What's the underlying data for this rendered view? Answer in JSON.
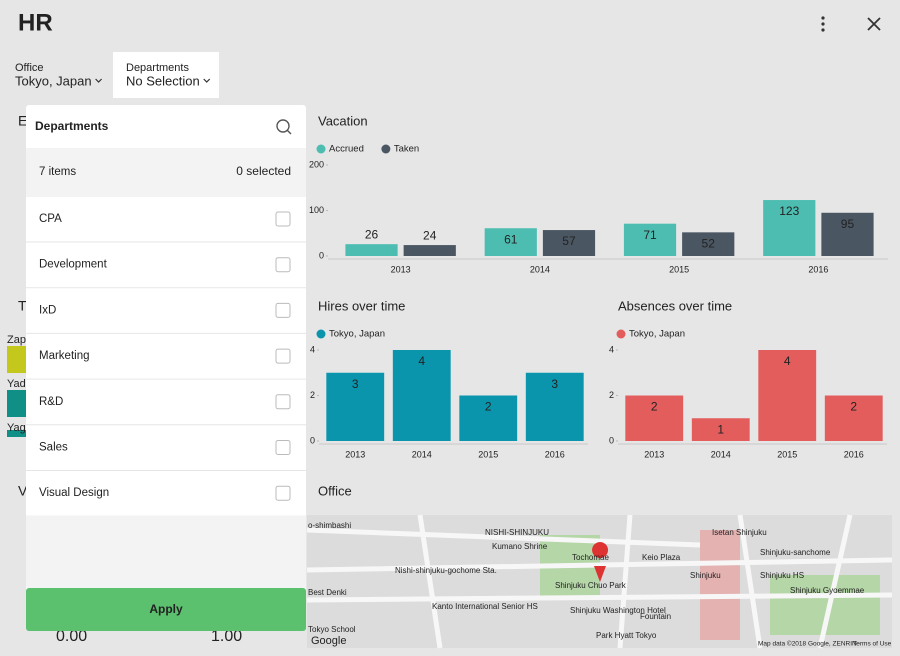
{
  "header": {
    "title": "HR"
  },
  "filters": [
    {
      "label": "Office",
      "value": "Tokyo, Japan"
    },
    {
      "label": "Departments",
      "value": "No Selection"
    }
  ],
  "dropdown": {
    "title": "Departments",
    "count": "7 items",
    "selected": "0 selected",
    "items": [
      "CPA",
      "Development",
      "IxD",
      "Marketing",
      "R&D",
      "Sales",
      "Visual Design"
    ],
    "button": "Apply"
  },
  "background_fragments": [
    "E",
    "T",
    "Zap",
    "Yade",
    "Yag",
    "V",
    "0.00",
    "1.00"
  ],
  "chart_data": [
    {
      "type": "bar",
      "title": "Vacation",
      "categories": [
        "2013",
        "2014",
        "2015",
        "2016"
      ],
      "series": [
        {
          "name": "Accrued",
          "color": "#4dbdb2",
          "values": [
            26,
            61,
            71,
            123
          ]
        },
        {
          "name": "Taken",
          "color": "#4b5663",
          "values": [
            24,
            57,
            52,
            95
          ]
        }
      ],
      "ylim": [
        0,
        200
      ],
      "yticks": [
        0,
        100,
        200
      ]
    },
    {
      "type": "bar",
      "title": "Hires over time",
      "categories": [
        "2013",
        "2014",
        "2015",
        "2016"
      ],
      "series": [
        {
          "name": "Tokyo, Japan",
          "color": "#0a95ad",
          "values": [
            3,
            4,
            2,
            3
          ]
        }
      ],
      "ylim": [
        0,
        4
      ],
      "yticks": [
        0,
        2,
        4
      ]
    },
    {
      "type": "bar",
      "title": "Absences over time",
      "categories": [
        "2013",
        "2014",
        "2015",
        "2016"
      ],
      "series": [
        {
          "name": "Tokyo, Japan",
          "color": "#e35d5d",
          "values": [
            2,
            1,
            4,
            2
          ]
        }
      ],
      "ylim": [
        0,
        4
      ],
      "yticks": [
        0,
        2,
        4
      ]
    }
  ],
  "map": {
    "title": "Office",
    "labels": [
      "o-shimbashi",
      "NISHI-SHINJUKU",
      "Kumano Shrine",
      "Nishi-shinjuku-gochome Sta.",
      "Tochomae",
      "Keio Plaza",
      "Isetan Shinjuku",
      "Shinjuku-sanchome",
      "Shinjuku",
      "Shinjuku HS",
      "Shinjuku Chuo Park",
      "Best Denki",
      "Kanto International Senior HS",
      "Shinjuku Washington Hotel",
      "Fountain",
      "Shinjuku Gyoemmae",
      "Tokyo School",
      "Park Hyatt Tokyo",
      "Google",
      "Map data ©2018 Google, ZENRIN",
      "Terms of Use"
    ]
  }
}
